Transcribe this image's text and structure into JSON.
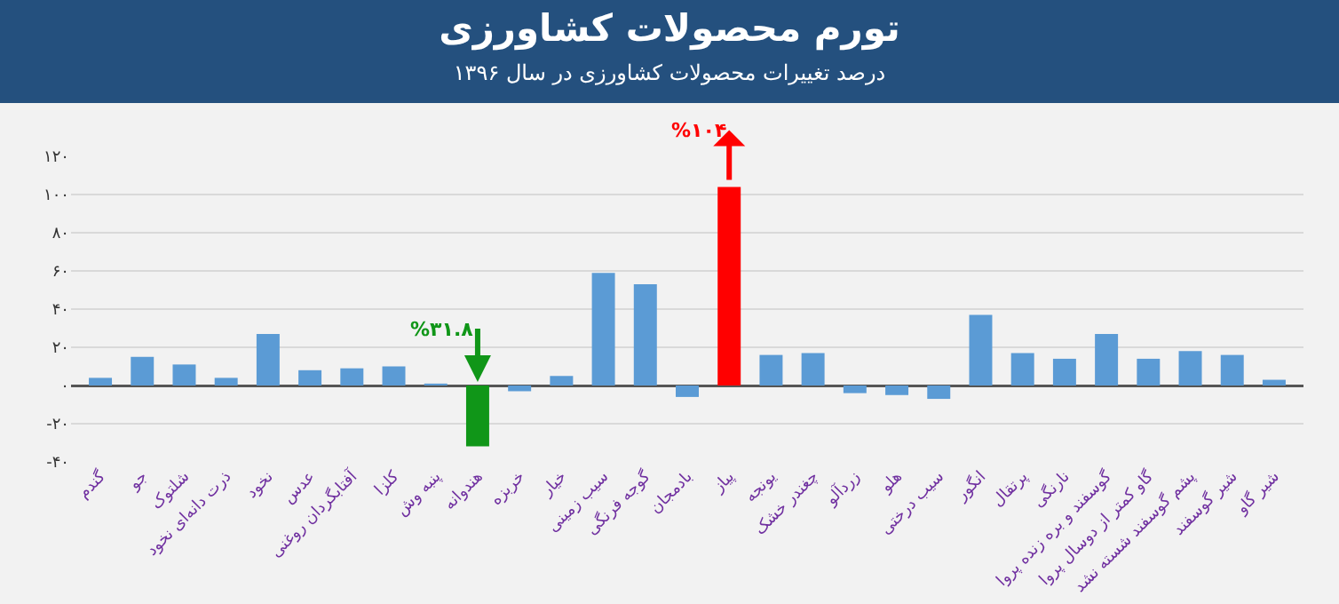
{
  "chart_data": {
    "type": "bar",
    "title": "تورم محصولات کشاورزی",
    "subtitle": "درصد تغییرات محصولات کشاورزی در سال ۱۳۹۶",
    "categories": [
      "گندم",
      "جو",
      "شلتوک",
      "ذرت دانه‌ای نخود",
      "نخود",
      "عدس",
      "آفتابگردان روغنی",
      "کلزا",
      "پنبه وش",
      "هندوانه",
      "خربزه",
      "خیار",
      "سیب زمینی",
      "گوجه فرنگی",
      "بادمجان",
      "پیاز",
      "یونجه",
      "چغندر خشک",
      "زردآلو",
      "هلو",
      "سیب درختی",
      "انگور",
      "پرتقال",
      "نارنگی",
      "گوسفند و بره زنده پروا",
      "گاو کمتر از دوسال پروا",
      "پشم گوسفند شسته نشد",
      "شیر گوسفند",
      "شیر گاو"
    ],
    "values": [
      4,
      15,
      11,
      4,
      27,
      8,
      9,
      10,
      1,
      -31.8,
      -3,
      5,
      59,
      53,
      -6,
      104,
      16,
      17,
      -4,
      -5,
      -7,
      37,
      17,
      14,
      27,
      14,
      18,
      16,
      3
    ],
    "colors": [
      "#5b9bd5",
      "#5b9bd5",
      "#5b9bd5",
      "#5b9bd5",
      "#5b9bd5",
      "#5b9bd5",
      "#5b9bd5",
      "#5b9bd5",
      "#5b9bd5",
      "#109618",
      "#5b9bd5",
      "#5b9bd5",
      "#5b9bd5",
      "#5b9bd5",
      "#5b9bd5",
      "#ff0000",
      "#5b9bd5",
      "#5b9bd5",
      "#5b9bd5",
      "#5b9bd5",
      "#5b9bd5",
      "#5b9bd5",
      "#5b9bd5",
      "#5b9bd5",
      "#5b9bd5",
      "#5b9bd5",
      "#5b9bd5",
      "#5b9bd5",
      "#5b9bd5"
    ],
    "ylim": [
      -40,
      120
    ],
    "yticks": [
      {
        "value": -40,
        "label": "-۴۰"
      },
      {
        "value": -20,
        "label": "-۲۰"
      },
      {
        "value": 0,
        "label": "۰"
      },
      {
        "value": 20,
        "label": "۲۰"
      },
      {
        "value": 40,
        "label": "۴۰"
      },
      {
        "value": 60,
        "label": "۶۰"
      },
      {
        "value": 80,
        "label": "۸۰"
      },
      {
        "value": 100,
        "label": "۱۰۰"
      },
      {
        "value": 120,
        "label": "۱۲۰"
      }
    ],
    "grid": true,
    "annotations": [
      {
        "text": "%۳۱.۸",
        "x": "هندوانه",
        "y": 0
      },
      {
        "text": "%۱۰۴",
        "x": "پیاز",
        "y": 104
      }
    ]
  }
}
